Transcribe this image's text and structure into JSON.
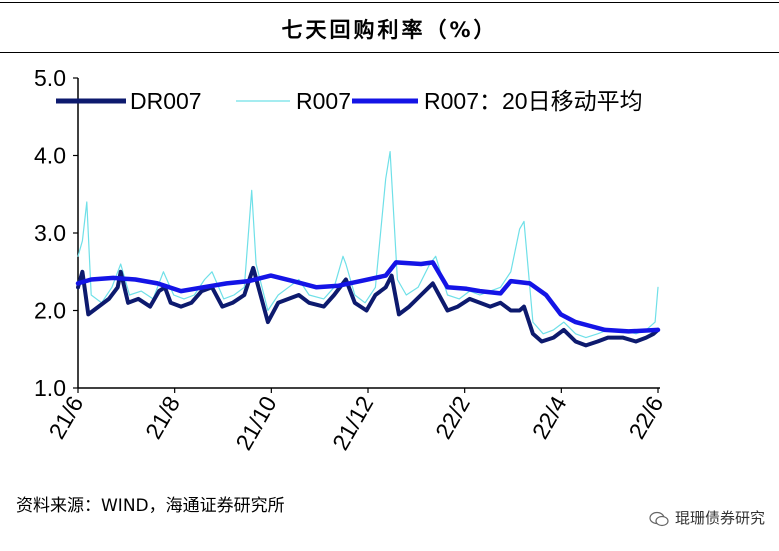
{
  "header": {
    "title": "七天回购利率（%）"
  },
  "footer": {
    "source": "资料来源：WIND，海通证券研究所",
    "watermark": "琨珊债券研究"
  },
  "colors": {
    "dr007": "#0d1a6e",
    "r007": "#6fe0e8",
    "ma20": "#1414e6",
    "axis": "#000000"
  },
  "chart_data": {
    "type": "line",
    "title": "七天回购利率（%）",
    "ylim": [
      1.0,
      5.0
    ],
    "yticks": [
      "1.0",
      "2.0",
      "3.0",
      "4.0",
      "5.0"
    ],
    "x_range": [
      "2021-06-01",
      "2022-06-30"
    ],
    "xticks": [
      "21/6",
      "21/8",
      "21/10",
      "21/12",
      "22/2",
      "22/4",
      "22/6"
    ],
    "legend_position": "top",
    "series": [
      {
        "name": "DR007",
        "key": "dr007",
        "points": [
          [
            "2021-06-01",
            2.3
          ],
          [
            "2021-06-04",
            2.5
          ],
          [
            "2021-06-08",
            1.95
          ],
          [
            "2021-06-15",
            2.05
          ],
          [
            "2021-06-22",
            2.15
          ],
          [
            "2021-06-28",
            2.3
          ],
          [
            "2021-06-30",
            2.5
          ],
          [
            "2021-07-05",
            2.1
          ],
          [
            "2021-07-12",
            2.15
          ],
          [
            "2021-07-20",
            2.05
          ],
          [
            "2021-07-26",
            2.25
          ],
          [
            "2021-07-30",
            2.3
          ],
          [
            "2021-08-03",
            2.1
          ],
          [
            "2021-08-10",
            2.05
          ],
          [
            "2021-08-17",
            2.1
          ],
          [
            "2021-08-24",
            2.25
          ],
          [
            "2021-08-31",
            2.3
          ],
          [
            "2021-09-07",
            2.05
          ],
          [
            "2021-09-14",
            2.1
          ],
          [
            "2021-09-22",
            2.2
          ],
          [
            "2021-09-28",
            2.55
          ],
          [
            "2021-10-08",
            1.85
          ],
          [
            "2021-10-15",
            2.1
          ],
          [
            "2021-10-22",
            2.15
          ],
          [
            "2021-10-29",
            2.2
          ],
          [
            "2021-11-05",
            2.1
          ],
          [
            "2021-11-15",
            2.05
          ],
          [
            "2021-11-22",
            2.2
          ],
          [
            "2021-11-30",
            2.4
          ],
          [
            "2021-12-06",
            2.1
          ],
          [
            "2021-12-14",
            2.0
          ],
          [
            "2021-12-20",
            2.2
          ],
          [
            "2021-12-27",
            2.3
          ],
          [
            "2021-12-31",
            2.45
          ],
          [
            "2022-01-05",
            1.95
          ],
          [
            "2022-01-12",
            2.05
          ],
          [
            "2022-01-20",
            2.2
          ],
          [
            "2022-01-28",
            2.35
          ],
          [
            "2022-02-07",
            2.0
          ],
          [
            "2022-02-14",
            2.05
          ],
          [
            "2022-02-22",
            2.15
          ],
          [
            "2022-03-01",
            2.1
          ],
          [
            "2022-03-08",
            2.05
          ],
          [
            "2022-03-15",
            2.1
          ],
          [
            "2022-03-22",
            2.0
          ],
          [
            "2022-03-28",
            2.0
          ],
          [
            "2022-03-31",
            2.05
          ],
          [
            "2022-04-06",
            1.7
          ],
          [
            "2022-04-12",
            1.6
          ],
          [
            "2022-04-20",
            1.65
          ],
          [
            "2022-04-27",
            1.75
          ],
          [
            "2022-05-05",
            1.6
          ],
          [
            "2022-05-12",
            1.55
          ],
          [
            "2022-05-20",
            1.6
          ],
          [
            "2022-05-27",
            1.65
          ],
          [
            "2022-06-06",
            1.65
          ],
          [
            "2022-06-15",
            1.6
          ],
          [
            "2022-06-22",
            1.65
          ],
          [
            "2022-06-27",
            1.7
          ],
          [
            "2022-06-30",
            1.75
          ]
        ]
      },
      {
        "name": "R007",
        "key": "r007",
        "points": [
          [
            "2021-06-01",
            2.7
          ],
          [
            "2021-06-04",
            2.9
          ],
          [
            "2021-06-07",
            3.4
          ],
          [
            "2021-06-10",
            2.2
          ],
          [
            "2021-06-17",
            2.1
          ],
          [
            "2021-06-24",
            2.3
          ],
          [
            "2021-06-30",
            2.6
          ],
          [
            "2021-07-06",
            2.2
          ],
          [
            "2021-07-14",
            2.25
          ],
          [
            "2021-07-22",
            2.15
          ],
          [
            "2021-07-29",
            2.5
          ],
          [
            "2021-08-05",
            2.2
          ],
          [
            "2021-08-12",
            2.15
          ],
          [
            "2021-08-19",
            2.2
          ],
          [
            "2021-08-26",
            2.4
          ],
          [
            "2021-08-31",
            2.5
          ],
          [
            "2021-09-08",
            2.15
          ],
          [
            "2021-09-15",
            2.2
          ],
          [
            "2021-09-22",
            2.3
          ],
          [
            "2021-09-27",
            3.55
          ],
          [
            "2021-09-30",
            2.6
          ],
          [
            "2021-10-08",
            2.0
          ],
          [
            "2021-10-15",
            2.2
          ],
          [
            "2021-10-22",
            2.3
          ],
          [
            "2021-10-29",
            2.4
          ],
          [
            "2021-11-05",
            2.2
          ],
          [
            "2021-11-15",
            2.15
          ],
          [
            "2021-11-22",
            2.3
          ],
          [
            "2021-11-28",
            2.7
          ],
          [
            "2021-11-30",
            2.6
          ],
          [
            "2021-12-06",
            2.2
          ],
          [
            "2021-12-13",
            2.1
          ],
          [
            "2021-12-20",
            2.3
          ],
          [
            "2021-12-27",
            3.7
          ],
          [
            "2021-12-30",
            4.05
          ],
          [
            "2022-01-04",
            2.4
          ],
          [
            "2022-01-10",
            2.2
          ],
          [
            "2022-01-18",
            2.3
          ],
          [
            "2022-01-26",
            2.6
          ],
          [
            "2022-01-30",
            2.7
          ],
          [
            "2022-02-07",
            2.2
          ],
          [
            "2022-02-15",
            2.15
          ],
          [
            "2022-02-22",
            2.25
          ],
          [
            "2022-03-01",
            2.2
          ],
          [
            "2022-03-08",
            2.25
          ],
          [
            "2022-03-15",
            2.3
          ],
          [
            "2022-03-22",
            2.5
          ],
          [
            "2022-03-28",
            3.05
          ],
          [
            "2022-03-31",
            3.15
          ],
          [
            "2022-04-06",
            1.85
          ],
          [
            "2022-04-13",
            1.7
          ],
          [
            "2022-04-20",
            1.75
          ],
          [
            "2022-04-27",
            1.85
          ],
          [
            "2022-05-05",
            1.7
          ],
          [
            "2022-05-12",
            1.65
          ],
          [
            "2022-05-20",
            1.7
          ],
          [
            "2022-05-27",
            1.75
          ],
          [
            "2022-06-06",
            1.75
          ],
          [
            "2022-06-15",
            1.7
          ],
          [
            "2022-06-22",
            1.75
          ],
          [
            "2022-06-28",
            1.85
          ],
          [
            "2022-06-30",
            2.3
          ]
        ]
      },
      {
        "name": "R007：20日移动平均",
        "key": "ma20",
        "points": [
          [
            "2021-06-01",
            2.35
          ],
          [
            "2021-06-10",
            2.4
          ],
          [
            "2021-06-25",
            2.42
          ],
          [
            "2021-07-10",
            2.4
          ],
          [
            "2021-07-25",
            2.35
          ],
          [
            "2021-08-10",
            2.25
          ],
          [
            "2021-08-25",
            2.3
          ],
          [
            "2021-09-10",
            2.35
          ],
          [
            "2021-09-25",
            2.38
          ],
          [
            "2021-10-10",
            2.45
          ],
          [
            "2021-10-25",
            2.38
          ],
          [
            "2021-11-10",
            2.3
          ],
          [
            "2021-11-25",
            2.32
          ],
          [
            "2021-12-10",
            2.38
          ],
          [
            "2021-12-27",
            2.45
          ],
          [
            "2022-01-03",
            2.62
          ],
          [
            "2022-01-20",
            2.6
          ],
          [
            "2022-01-28",
            2.62
          ],
          [
            "2022-02-07",
            2.3
          ],
          [
            "2022-02-20",
            2.28
          ],
          [
            "2022-03-01",
            2.25
          ],
          [
            "2022-03-15",
            2.22
          ],
          [
            "2022-03-22",
            2.38
          ],
          [
            "2022-04-04",
            2.35
          ],
          [
            "2022-04-15",
            2.2
          ],
          [
            "2022-04-25",
            1.95
          ],
          [
            "2022-05-05",
            1.85
          ],
          [
            "2022-05-15",
            1.8
          ],
          [
            "2022-05-25",
            1.75
          ],
          [
            "2022-06-10",
            1.73
          ],
          [
            "2022-06-30",
            1.75
          ]
        ]
      }
    ]
  }
}
